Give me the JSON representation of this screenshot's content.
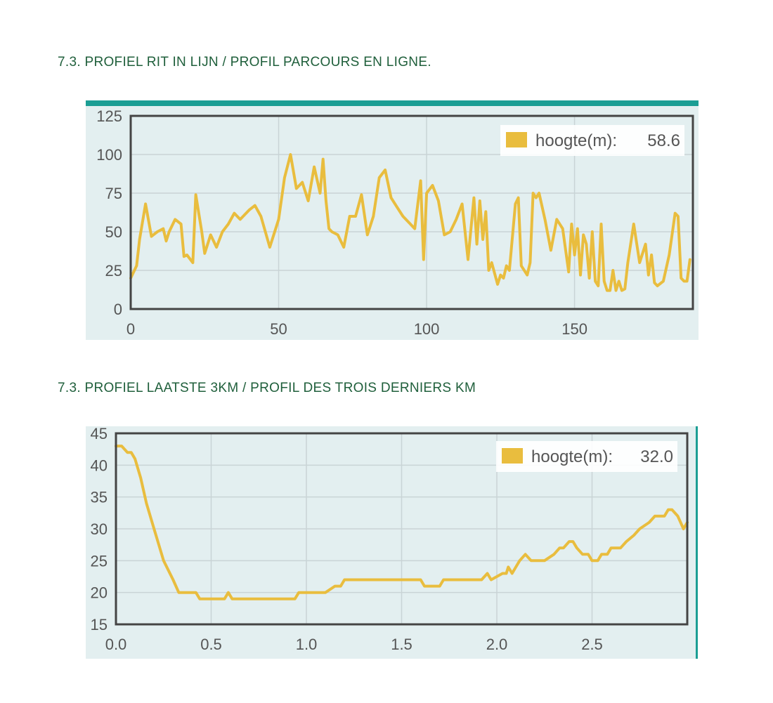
{
  "headings": {
    "profile": "7.3. PROFIEL RIT IN LIJN / PROFIL PARCOURS EN LIGNE.",
    "last3km": "7.3. PROFIEL LAATSTE 3KM / PROFIL DES TROIS DERNIERS KM"
  },
  "colors": {
    "heading": "#1f5f3b",
    "line": "#e9bd3e",
    "plot_bg": "#e3eff0",
    "top_bar": "#1b9e94",
    "frame": "#444444",
    "grid": "#c9d4d6"
  },
  "chart_data": [
    {
      "type": "line",
      "legend": "hoogte(m):",
      "legend_value": "58.6",
      "legend_position": "top-right",
      "grid": true,
      "xlim": [
        0,
        190
      ],
      "ylim": [
        0,
        125
      ],
      "xticks": [
        "0",
        "50",
        "100",
        "150"
      ],
      "yticks": [
        "0",
        "25",
        "50",
        "75",
        "100",
        "125"
      ],
      "series": [
        {
          "x": [
            0,
            2,
            3,
            5,
            7,
            9,
            11,
            12,
            13,
            15,
            17,
            18,
            19,
            21,
            22,
            24,
            25,
            27,
            29,
            31,
            33,
            35,
            37,
            40,
            42,
            44,
            47,
            49,
            50,
            52,
            54,
            56,
            58,
            60,
            62,
            64,
            65,
            66,
            67,
            68,
            70,
            72,
            74,
            76,
            78,
            80,
            82,
            84,
            86,
            88,
            90,
            92,
            94,
            96,
            98,
            99,
            100,
            102,
            104,
            106,
            108,
            110,
            112,
            114,
            116,
            117,
            118,
            119,
            120,
            121,
            122,
            124,
            125,
            126,
            127,
            128,
            130,
            131,
            132,
            134,
            135,
            136,
            137,
            138,
            140,
            142,
            144,
            146,
            148,
            149,
            150,
            151,
            152,
            153,
            154,
            155,
            156,
            157,
            158,
            159,
            160,
            161,
            162,
            163,
            164,
            165,
            166,
            167,
            168,
            170,
            172,
            174,
            175,
            176,
            177,
            178,
            180,
            182,
            184,
            185,
            186,
            187,
            188,
            189
          ],
          "y": [
            20,
            28,
            45,
            68,
            47,
            50,
            52,
            44,
            50,
            58,
            55,
            34,
            35,
            30,
            74,
            50,
            36,
            48,
            40,
            50,
            55,
            62,
            58,
            64,
            67,
            60,
            40,
            52,
            58,
            85,
            100,
            78,
            82,
            70,
            92,
            75,
            97,
            70,
            52,
            50,
            48,
            40,
            60,
            60,
            74,
            48,
            60,
            85,
            90,
            72,
            66,
            60,
            56,
            52,
            83,
            32,
            75,
            80,
            70,
            48,
            50,
            58,
            68,
            32,
            72,
            42,
            70,
            45,
            63,
            25,
            30,
            16,
            22,
            20,
            28,
            25,
            68,
            72,
            28,
            22,
            30,
            75,
            72,
            75,
            58,
            38,
            58,
            52,
            24,
            55,
            35,
            52,
            22,
            48,
            42,
            20,
            50,
            18,
            15,
            55,
            18,
            12,
            12,
            25,
            12,
            18,
            12,
            13,
            30,
            55,
            30,
            42,
            22,
            35,
            17,
            15,
            18,
            35,
            62,
            60,
            20,
            18,
            18,
            32
          ]
        }
      ]
    },
    {
      "type": "line",
      "legend": "hoogte(m):",
      "legend_value": "32.0",
      "legend_position": "top-right",
      "grid": true,
      "xlim": [
        0,
        3
      ],
      "ylim": [
        15,
        45
      ],
      "xticks": [
        "0.0",
        "0.5",
        "1.0",
        "1.5",
        "2.0",
        "2.5"
      ],
      "yticks": [
        "15",
        "20",
        "25",
        "30",
        "35",
        "40",
        "45"
      ],
      "series": [
        {
          "x": [
            0,
            0.03,
            0.06,
            0.08,
            0.1,
            0.13,
            0.16,
            0.2,
            0.25,
            0.3,
            0.33,
            0.35,
            0.42,
            0.44,
            0.5,
            0.57,
            0.59,
            0.61,
            0.7,
            0.8,
            0.9,
            0.94,
            0.96,
            1.0,
            1.05,
            1.1,
            1.15,
            1.18,
            1.2,
            1.25,
            1.3,
            1.4,
            1.5,
            1.55,
            1.6,
            1.62,
            1.7,
            1.72,
            1.8,
            1.88,
            1.9,
            1.92,
            1.95,
            1.97,
            2.03,
            2.05,
            2.06,
            2.08,
            2.1,
            2.12,
            2.15,
            2.18,
            2.2,
            2.25,
            2.3,
            2.33,
            2.35,
            2.38,
            2.4,
            2.42,
            2.45,
            2.48,
            2.5,
            2.53,
            2.55,
            2.58,
            2.6,
            2.65,
            2.68,
            2.72,
            2.75,
            2.8,
            2.83,
            2.88,
            2.9,
            2.92,
            2.95,
            2.98,
            3.0
          ],
          "y": [
            43,
            43,
            42,
            42,
            41,
            38,
            34,
            30,
            25,
            22,
            20,
            20,
            20,
            19,
            19,
            19,
            20,
            19,
            19,
            19,
            19,
            19,
            20,
            20,
            20,
            20,
            21,
            21,
            22,
            22,
            22,
            22,
            22,
            22,
            22,
            21,
            21,
            22,
            22,
            22,
            22,
            22,
            23,
            22,
            23,
            23,
            24,
            23,
            24,
            25,
            26,
            25,
            25,
            25,
            26,
            27,
            27,
            28,
            28,
            27,
            26,
            26,
            25,
            25,
            26,
            26,
            27,
            27,
            28,
            29,
            30,
            31,
            32,
            32,
            33,
            33,
            32,
            30,
            31
          ]
        }
      ]
    }
  ]
}
